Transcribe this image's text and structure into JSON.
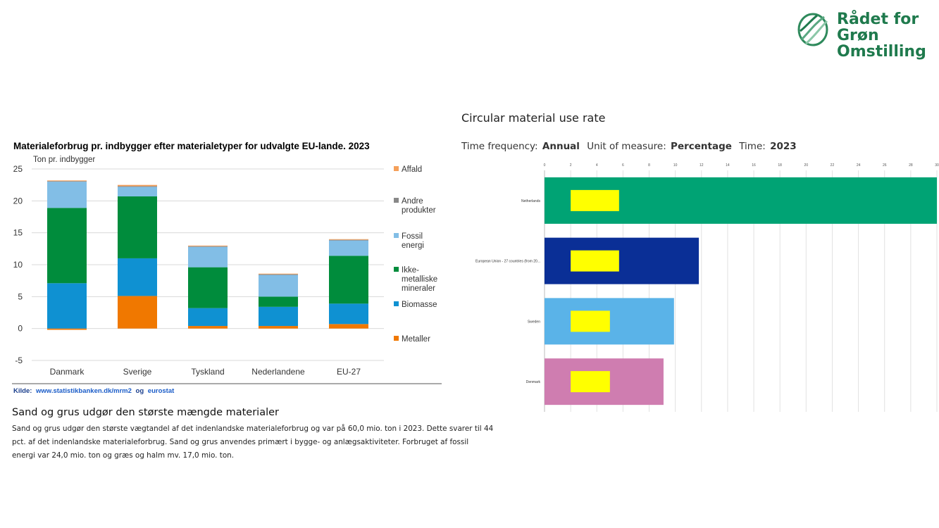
{
  "logo": {
    "line1": "Rådet for",
    "line2": "Grøn",
    "line3": "Omstilling",
    "color": "#1f7a4d"
  },
  "left_chart": {
    "title": "Materialeforbrug pr. indbygger efter materialetyper for udvalgte EU-lande. 2023",
    "unit_label": "Ton pr. indbygger",
    "source_label": "Kilde:",
    "source_link1": "www.statistikbanken.dk/mrm2",
    "source_mid": "og",
    "source_link2": "eurostat"
  },
  "right_chart": {
    "title": "Circular material use rate",
    "freq_label": "Time frequency:",
    "freq_value": "Annual",
    "unit_label": "Unit of measure:",
    "unit_value": "Percentage",
    "time_label": "Time:",
    "time_value": "2023"
  },
  "article": {
    "title": "Sand og grus udgør den største mængde materialer",
    "line1": "Sand og grus udgør den største vægtandel af det indenlandske materialeforbrug og var på 60,0 mio. ton i 2023. Dette svarer til 44",
    "line2": "pct. af det indenlandske materialeforbrug. Sand og grus anvendes primært i bygge- og anlægsaktiviteter. Forbruget af fossil",
    "line3": "energi var 24,0 mio. ton og græs og halm mv. 17,0 mio. ton."
  },
  "chart_data": [
    {
      "type": "bar",
      "stacked": true,
      "title": "Materialeforbrug pr. indbygger efter materialetyper for udvalgte EU-lande. 2023",
      "ylabel": "Ton pr. indbygger",
      "ylim": [
        -5,
        25
      ],
      "yticks": [
        -5,
        0,
        5,
        10,
        15,
        20,
        25
      ],
      "grid": true,
      "legend_position": "right",
      "categories": [
        "Danmark",
        "Sverige",
        "Tyskland",
        "Nederlandene",
        "EU-27"
      ],
      "series": [
        {
          "name": "Metaller",
          "color": "#f07800",
          "values": [
            -0.2,
            5.1,
            0.4,
            0.4,
            0.7
          ]
        },
        {
          "name": "Biomasse",
          "color": "#0f91d2",
          "values": [
            7.1,
            5.9,
            2.8,
            3.0,
            3.2
          ]
        },
        {
          "name": "Ikke-metalliske mineraler",
          "color": "#008c3c",
          "values": [
            11.8,
            9.7,
            6.4,
            1.6,
            7.5
          ]
        },
        {
          "name": "Fossil energi",
          "color": "#82bee6",
          "values": [
            4.1,
            1.5,
            3.2,
            3.4,
            2.4
          ]
        },
        {
          "name": "Andre produkter",
          "color": "#888888",
          "values": [
            0.1,
            0.1,
            0.1,
            0.1,
            0.1
          ]
        },
        {
          "name": "Affald",
          "color": "#f5a05a",
          "values": [
            0.1,
            0.2,
            0.1,
            0.1,
            0.1
          ]
        }
      ],
      "legend": [
        {
          "lines": [
            "Affald"
          ],
          "color": "#f5a05a"
        },
        {
          "lines": [
            "Andre",
            "produkter"
          ],
          "color": "#888888"
        },
        {
          "lines": [
            "Fossil",
            "energi"
          ],
          "color": "#82bee6"
        },
        {
          "lines": [
            "Ikke-",
            "metalliske",
            "mineraler"
          ],
          "color": "#008c3c"
        },
        {
          "lines": [
            "Biomasse"
          ],
          "color": "#0f91d2"
        },
        {
          "lines": [
            "Metaller"
          ],
          "color": "#f07800"
        }
      ]
    },
    {
      "type": "bar",
      "orientation": "horizontal",
      "title": "Circular material use rate",
      "xlim": [
        0,
        30
      ],
      "xticks": [
        0,
        2,
        4,
        6,
        8,
        10,
        12,
        14,
        16,
        18,
        20,
        22,
        24,
        26,
        28,
        30
      ],
      "grid": true,
      "categories": [
        "Netherlands",
        "European Union - 27 countries (from 20...",
        "Sweden",
        "Denmark"
      ],
      "series": [
        {
          "name": "Circular material use rate",
          "values": [
            30.6,
            11.8,
            9.9,
            9.1
          ],
          "colors": [
            "#00a374",
            "#0a2f96",
            "#5ab3e8",
            "#cf7db0"
          ]
        }
      ],
      "highlight_boxes": [
        {
          "start": 2,
          "end": 5.7
        },
        {
          "start": 2,
          "end": 5.7
        },
        {
          "start": 2,
          "end": 5
        },
        {
          "start": 2,
          "end": 5
        }
      ],
      "highlight_color": "#ffff00"
    }
  ]
}
